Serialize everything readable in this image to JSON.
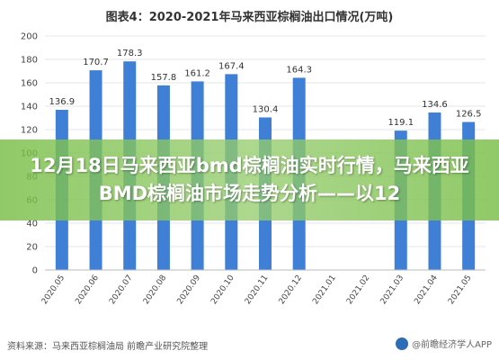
{
  "chart_data": {
    "type": "bar",
    "title": "图表4：2020-2021年马来西亚棕榈油出口情况(万吨)",
    "categories": [
      "2020.05",
      "2020.06",
      "2020.07",
      "2020.08",
      "2020.09",
      "2020.10",
      "2020.11",
      "2020.12",
      "2021.01",
      "2021.02",
      "2021.03",
      "2021.04",
      "2021.05"
    ],
    "values": [
      136.9,
      170.7,
      178.3,
      157.8,
      161.2,
      167.4,
      130.4,
      164.3,
      null,
      null,
      119.1,
      134.6,
      126.5
    ],
    "data_labels": [
      "136.9",
      "170.7",
      "178.3",
      "157.8",
      "161.2",
      "167.4",
      "130.4",
      "164.3",
      "",
      "",
      "119.1",
      "134.6",
      "126.5"
    ],
    "yticks": [
      "0",
      "20",
      "40",
      "60",
      "80",
      "100",
      "120",
      "140",
      "160",
      "180",
      "200"
    ],
    "ylim": [
      0,
      200
    ],
    "bar_color": "#3f7fd6",
    "grid": true,
    "xlabel": "",
    "ylabel": ""
  },
  "source": "资料来源：马来西亚棕榈油局 前瞻产业研究院整理",
  "watermark_corner": "@前瞻经济学人APP",
  "overlay": {
    "headline": "12月18日马来西亚bmd棕榈油实时行情，马来西亚BMD棕榈油市场走势分析——以12",
    "color": "#7dbb4a"
  }
}
